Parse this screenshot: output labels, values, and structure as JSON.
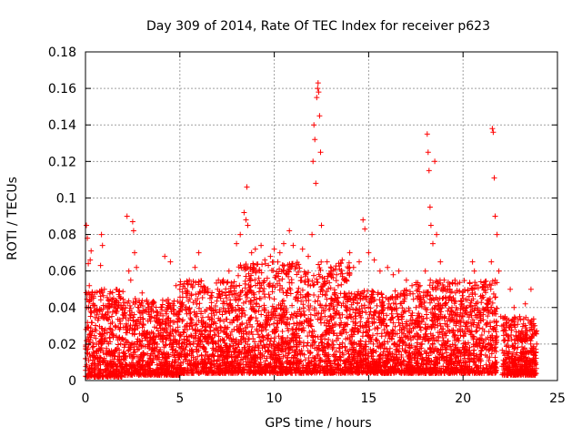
{
  "chart_data": {
    "type": "scatter",
    "title": "Day 309 of 2014, Rate Of TEC Index for receiver p623",
    "xlabel": "GPS time / hours",
    "ylabel": "ROTI / TECUs",
    "xlim": [
      0,
      25
    ],
    "ylim": [
      0,
      0.18
    ],
    "xticks": [
      0,
      5,
      10,
      15,
      20,
      25
    ],
    "yticks": [
      0,
      0.02,
      0.04,
      0.06,
      0.08,
      0.1,
      0.12,
      0.14,
      0.16,
      0.18
    ],
    "xtick_labels": [
      "0",
      "5",
      "10",
      "15",
      "20",
      "25"
    ],
    "ytick_labels": [
      "0",
      "0.02",
      "0.04",
      "0.06",
      "0.08",
      "0.1",
      "0.12",
      "0.14",
      "0.16",
      "0.18"
    ],
    "grid": true,
    "marker": "+",
    "colors": {
      "series": "#ff0000",
      "grid": "#a0a0a0",
      "axis": "#000000"
    },
    "series": [
      {
        "name": "ROTI",
        "points": [
          [
            0.0,
            0.012
          ],
          [
            0.05,
            0.085
          ],
          [
            0.1,
            0.078
          ],
          [
            0.15,
            0.064
          ],
          [
            0.2,
            0.052
          ],
          [
            0.25,
            0.066
          ],
          [
            0.3,
            0.071
          ],
          [
            0.35,
            0.048
          ],
          [
            0.4,
            0.042
          ],
          [
            0.45,
            0.038
          ],
          [
            0.5,
            0.028
          ],
          [
            0.6,
            0.036
          ],
          [
            0.7,
            0.02
          ],
          [
            0.8,
            0.063
          ],
          [
            0.85,
            0.08
          ],
          [
            0.9,
            0.074
          ],
          [
            1.0,
            0.05
          ],
          [
            1.2,
            0.044
          ],
          [
            1.5,
            0.04
          ],
          [
            1.8,
            0.046
          ],
          [
            2.0,
            0.036
          ],
          [
            2.2,
            0.09
          ],
          [
            2.3,
            0.06
          ],
          [
            2.4,
            0.055
          ],
          [
            2.5,
            0.087
          ],
          [
            2.55,
            0.082
          ],
          [
            2.6,
            0.07
          ],
          [
            2.7,
            0.062
          ],
          [
            3.0,
            0.048
          ],
          [
            3.3,
            0.042
          ],
          [
            3.6,
            0.038
          ],
          [
            4.0,
            0.04
          ],
          [
            4.2,
            0.068
          ],
          [
            4.5,
            0.065
          ],
          [
            4.8,
            0.052
          ],
          [
            5.0,
            0.05
          ],
          [
            5.5,
            0.055
          ],
          [
            5.8,
            0.062
          ],
          [
            6.0,
            0.07
          ],
          [
            6.3,
            0.05
          ],
          [
            6.6,
            0.045
          ],
          [
            7.0,
            0.05
          ],
          [
            7.3,
            0.055
          ],
          [
            7.6,
            0.06
          ],
          [
            8.0,
            0.075
          ],
          [
            8.2,
            0.08
          ],
          [
            8.4,
            0.092
          ],
          [
            8.5,
            0.088
          ],
          [
            8.55,
            0.106
          ],
          [
            8.6,
            0.085
          ],
          [
            8.8,
            0.07
          ],
          [
            9.0,
            0.072
          ],
          [
            9.3,
            0.074
          ],
          [
            9.5,
            0.066
          ],
          [
            9.8,
            0.068
          ],
          [
            10.0,
            0.072
          ],
          [
            10.3,
            0.07
          ],
          [
            10.5,
            0.075
          ],
          [
            10.8,
            0.082
          ],
          [
            11.0,
            0.074
          ],
          [
            11.5,
            0.072
          ],
          [
            11.8,
            0.068
          ],
          [
            12.0,
            0.08
          ],
          [
            12.05,
            0.12
          ],
          [
            12.1,
            0.14
          ],
          [
            12.15,
            0.132
          ],
          [
            12.2,
            0.108
          ],
          [
            12.25,
            0.155
          ],
          [
            12.3,
            0.16
          ],
          [
            12.32,
            0.163
          ],
          [
            12.35,
            0.158
          ],
          [
            12.4,
            0.145
          ],
          [
            12.45,
            0.125
          ],
          [
            12.5,
            0.085
          ],
          [
            12.8,
            0.065
          ],
          [
            13.0,
            0.06
          ],
          [
            13.3,
            0.058
          ],
          [
            13.6,
            0.066
          ],
          [
            14.0,
            0.07
          ],
          [
            14.2,
            0.062
          ],
          [
            14.5,
            0.065
          ],
          [
            14.7,
            0.088
          ],
          [
            14.8,
            0.083
          ],
          [
            15.0,
            0.07
          ],
          [
            15.3,
            0.066
          ],
          [
            15.6,
            0.06
          ],
          [
            16.0,
            0.062
          ],
          [
            16.3,
            0.058
          ],
          [
            16.6,
            0.06
          ],
          [
            17.0,
            0.055
          ],
          [
            17.3,
            0.052
          ],
          [
            17.6,
            0.05
          ],
          [
            18.0,
            0.06
          ],
          [
            18.1,
            0.135
          ],
          [
            18.15,
            0.125
          ],
          [
            18.2,
            0.115
          ],
          [
            18.25,
            0.095
          ],
          [
            18.3,
            0.085
          ],
          [
            18.4,
            0.075
          ],
          [
            18.5,
            0.12
          ],
          [
            18.6,
            0.08
          ],
          [
            18.8,
            0.065
          ],
          [
            19.0,
            0.055
          ],
          [
            19.3,
            0.05
          ],
          [
            19.6,
            0.048
          ],
          [
            20.0,
            0.045
          ],
          [
            20.2,
            0.04
          ],
          [
            20.5,
            0.065
          ],
          [
            20.6,
            0.06
          ],
          [
            21.0,
            0.045
          ],
          [
            21.3,
            0.04
          ],
          [
            21.5,
            0.065
          ],
          [
            21.55,
            0.138
          ],
          [
            21.6,
            0.136
          ],
          [
            21.65,
            0.111
          ],
          [
            21.7,
            0.09
          ],
          [
            21.8,
            0.08
          ],
          [
            21.9,
            0.06
          ],
          [
            22.0,
            0.035
          ],
          [
            22.2,
            0.015
          ],
          [
            22.5,
            0.05
          ],
          [
            22.7,
            0.04
          ],
          [
            23.0,
            0.035
          ],
          [
            23.3,
            0.042
          ],
          [
            23.6,
            0.05
          ],
          [
            23.8,
            0.03
          ],
          [
            23.9,
            0.02
          ]
        ],
        "dense_band": {
          "ranges": [
            {
              "x": [
                0.0,
                2.0
              ],
              "y": [
                0.002,
                0.05
              ]
            },
            {
              "x": [
                2.0,
                5.0
              ],
              "y": [
                0.003,
                0.045
              ]
            },
            {
              "x": [
                5.0,
                8.0
              ],
              "y": [
                0.004,
                0.055
              ]
            },
            {
              "x": [
                8.0,
                14.0
              ],
              "y": [
                0.004,
                0.065
              ]
            },
            {
              "x": [
                14.0,
                17.5
              ],
              "y": [
                0.004,
                0.05
              ]
            },
            {
              "x": [
                17.5,
                21.8
              ],
              "y": [
                0.004,
                0.055
              ]
            },
            {
              "x": [
                22.0,
                23.9
              ],
              "y": [
                0.003,
                0.035
              ]
            }
          ],
          "gap": [
            21.9,
            22.05
          ]
        }
      }
    ]
  }
}
